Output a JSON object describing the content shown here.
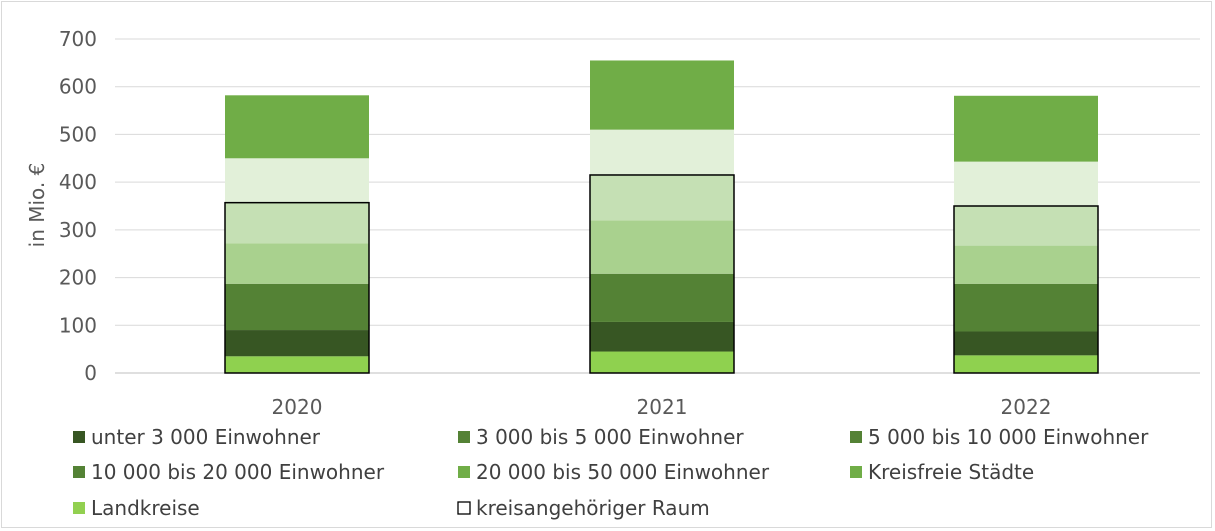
{
  "chart_data": {
    "type": "bar",
    "stacked": true,
    "title": "",
    "xlabel": "",
    "ylabel": "in Mio. €",
    "ylim": [
      0,
      700
    ],
    "yticks": [
      0,
      100,
      200,
      300,
      400,
      500,
      600,
      700
    ],
    "grid": true,
    "legend_position": "bottom",
    "categories": [
      "2020",
      "2021",
      "2022"
    ],
    "series": [
      {
        "name": "Landkreise",
        "color": "#8fd14f",
        "values": [
          35,
          45,
          37
        ]
      },
      {
        "name": "unter 3 000 Einwohner",
        "color": "#375623",
        "values": [
          55,
          62,
          50
        ]
      },
      {
        "name": "3 000 bis 5 000 Einwohner",
        "color": "#548235",
        "values": [
          97,
          101,
          100
        ]
      },
      {
        "name": "5 000 bis 10 000 Einwohner",
        "color": "#a9d18e",
        "values": [
          85,
          112,
          80
        ]
      },
      {
        "name": "10 000 bis 20 000 Einwohner",
        "color": "#c5e0b4",
        "values": [
          85,
          95,
          83
        ]
      },
      {
        "name": "20 000 bis 50 000 Einwohner",
        "color": "#e2f0d9",
        "values": [
          93,
          95,
          93
        ]
      },
      {
        "name": "Kreisfreie Städte",
        "color": "#70ad47",
        "values": [
          132,
          145,
          138
        ]
      }
    ],
    "outline_series": {
      "name": "kreisangehöriger Raum",
      "values": [
        357,
        415,
        350
      ]
    },
    "legend": [
      {
        "label": "unter 3 000 Einwohner",
        "color": "#375623",
        "outline": false
      },
      {
        "label": "3 000 bis 5 000 Einwohner",
        "color": "#548235",
        "outline": false
      },
      {
        "label": "5 000 bis 10 000 Einwohner",
        "color": "#548235",
        "outline": false
      },
      {
        "label": "10 000 bis 20 000 Einwohner",
        "color": "#548235",
        "outline": false
      },
      {
        "label": "20 000 bis 50 000 Einwohner",
        "color": "#70ad47",
        "outline": false
      },
      {
        "label": "Kreisfreie Städte",
        "color": "#70ad47",
        "outline": false
      },
      {
        "label": "Landkreise",
        "color": "#92d050",
        "outline": false
      },
      {
        "label": "kreisangehöriger Raum",
        "color": "#ffffff",
        "outline": true
      }
    ]
  }
}
